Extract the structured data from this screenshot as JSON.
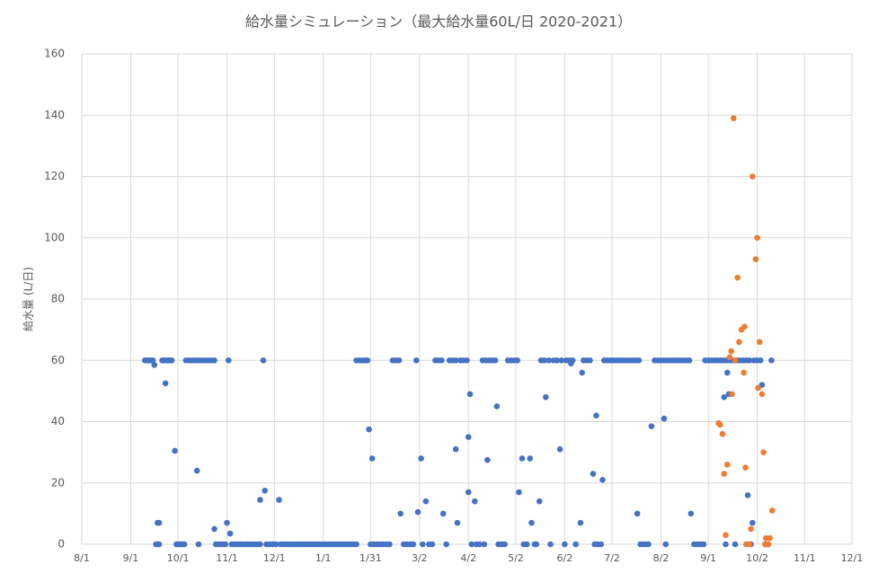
{
  "chart_data": {
    "type": "scatter",
    "title": "給水量シミュレーション（最大給水量60L/日 2020-2021）",
    "y_label": "給水量 (L/日)",
    "xlim": [
      0,
      488
    ],
    "ylim": [
      0,
      160
    ],
    "grid": true,
    "xticks": [
      {
        "value": 0,
        "label": "8/1"
      },
      {
        "value": 31,
        "label": "9/1"
      },
      {
        "value": 61,
        "label": "10/1"
      },
      {
        "value": 92,
        "label": "11/1"
      },
      {
        "value": 122,
        "label": "12/1"
      },
      {
        "value": 153,
        "label": "1/1"
      },
      {
        "value": 183,
        "label": "1/31"
      },
      {
        "value": 214,
        "label": "3/2"
      },
      {
        "value": 245,
        "label": "4/2"
      },
      {
        "value": 275,
        "label": "5/2"
      },
      {
        "value": 306,
        "label": "6/2"
      },
      {
        "value": 336,
        "label": "7/2"
      },
      {
        "value": 367,
        "label": "8/2"
      },
      {
        "value": 397,
        "label": "9/1"
      },
      {
        "value": 428,
        "label": "10/2"
      },
      {
        "value": 458,
        "label": "11/1"
      },
      {
        "value": 488,
        "label": "12/1"
      }
    ],
    "yticks": [
      0,
      20,
      40,
      60,
      80,
      100,
      120,
      140,
      160
    ],
    "series": [
      {
        "color": "#4472c4",
        "x": [
          40,
          41,
          42,
          43,
          44,
          45,
          46,
          47,
          48,
          48,
          49,
          49,
          51,
          52,
          53,
          53,
          54,
          55,
          56,
          57,
          59,
          60,
          61,
          62,
          63,
          64,
          65,
          66,
          68,
          70,
          72,
          73,
          74,
          74,
          76,
          78,
          80,
          82,
          84,
          84,
          85,
          87,
          89,
          91,
          92,
          93,
          94,
          95,
          97,
          99,
          101,
          103,
          105,
          107,
          109,
          111,
          113,
          113,
          115,
          116,
          117,
          119,
          121,
          123,
          125,
          126,
          128,
          130,
          132,
          134,
          136,
          138,
          140,
          142,
          144,
          146,
          148,
          150,
          152,
          154,
          156,
          158,
          160,
          162,
          164,
          166,
          168,
          170,
          172,
          174,
          174,
          176,
          178,
          180,
          181,
          182,
          183,
          184,
          185,
          187,
          189,
          191,
          193,
          195,
          197,
          199,
          201,
          202,
          204,
          206,
          208,
          210,
          212,
          213,
          215,
          216,
          218,
          220,
          222,
          224,
          226,
          228,
          229,
          231,
          233,
          235,
          237,
          237,
          238,
          240,
          242,
          244,
          245,
          245,
          246,
          247,
          249,
          250,
          252,
          254,
          255,
          256,
          257,
          258,
          260,
          262,
          263,
          264,
          266,
          268,
          270,
          272,
          274,
          276,
          277,
          279,
          280,
          282,
          284,
          285,
          287,
          288,
          290,
          291,
          293,
          294,
          296,
          297,
          299,
          301,
          303,
          304,
          306,
          307,
          309,
          310,
          311,
          313,
          316,
          317,
          318,
          320,
          322,
          324,
          325,
          326,
          327,
          329,
          330,
          331,
          333,
          335,
          337,
          339,
          341,
          343,
          345,
          347,
          349,
          351,
          352,
          353,
          354,
          356,
          358,
          359,
          361,
          363,
          365,
          367,
          369,
          369,
          370,
          371,
          373,
          375,
          377,
          379,
          381,
          383,
          385,
          386,
          388,
          390,
          392,
          394,
          395,
          397,
          399,
          401,
          403,
          405,
          407,
          407,
          408,
          409,
          409,
          410,
          411,
          413,
          414,
          415,
          417,
          419,
          421,
          422,
          423,
          424,
          425,
          426,
          428,
          430,
          431,
          433,
          434,
          435,
          437
        ],
        "values": [
          60,
          60,
          60,
          60,
          60,
          60,
          58.5,
          0,
          0,
          7,
          7,
          0,
          60,
          60,
          60,
          52.5,
          60,
          60,
          60,
          60,
          30.5,
          0,
          0,
          0,
          0,
          0,
          0,
          60,
          60,
          60,
          60,
          24,
          0,
          60,
          60,
          60,
          60,
          60,
          60,
          5,
          0,
          0,
          0,
          0,
          7,
          60,
          3.5,
          0,
          0,
          0,
          0,
          0,
          0,
          0,
          0,
          0,
          0,
          14.5,
          60,
          17.5,
          0,
          0,
          0,
          0,
          14.5,
          0,
          0,
          0,
          0,
          0,
          0,
          0,
          0,
          0,
          0,
          0,
          0,
          0,
          0,
          0,
          0,
          0,
          0,
          0,
          0,
          0,
          0,
          0,
          0,
          0,
          60,
          60,
          60,
          60,
          60,
          37.5,
          0,
          28,
          0,
          0,
          0,
          0,
          0,
          0,
          60,
          60,
          60,
          10,
          0,
          0,
          0,
          0,
          60,
          10.5,
          28,
          0,
          14,
          0,
          0,
          60,
          60,
          60,
          10,
          0,
          60,
          60,
          31,
          60,
          7,
          60,
          60,
          60,
          17,
          35,
          49,
          0,
          14,
          0,
          0,
          60,
          0,
          60,
          27.5,
          60,
          60,
          60,
          45,
          0,
          0,
          0,
          60,
          60,
          60,
          60,
          17,
          28,
          0,
          0,
          28,
          7,
          0,
          0,
          14,
          60,
          60,
          48,
          60,
          0,
          60,
          60,
          31,
          60,
          0,
          60,
          60,
          59,
          60,
          0,
          7,
          56,
          60,
          60,
          60,
          23,
          0,
          42,
          0,
          0,
          21,
          60,
          60,
          60,
          60,
          60,
          60,
          60,
          60,
          60,
          60,
          60,
          10,
          60,
          0,
          0,
          0,
          0,
          38.5,
          60,
          60,
          60,
          41,
          60,
          0,
          60,
          60,
          60,
          60,
          60,
          60,
          60,
          60,
          10,
          0,
          0,
          0,
          0,
          60,
          60,
          60,
          60,
          60,
          60,
          60,
          48,
          0,
          60,
          56,
          49,
          60,
          60,
          0,
          60,
          60,
          60,
          60,
          16,
          60,
          0,
          7,
          60,
          60,
          60,
          52,
          0,
          0,
          0,
          60
        ]
      },
      {
        "color": "#ed7d31",
        "x": [
          403.5,
          404.5,
          406,
          407,
          408,
          409,
          410.5,
          411.5,
          412,
          413,
          414,
          415.5,
          416.5,
          418,
          419.5,
          420,
          420.5,
          421,
          423,
          424,
          425,
          427,
          428,
          428.5,
          429.5,
          431,
          432,
          433,
          433.5,
          435,
          436,
          437.5
        ],
        "values": [
          39.5,
          39,
          36,
          23,
          3,
          26,
          61,
          63,
          49,
          139,
          60,
          87,
          66,
          70,
          56,
          71,
          25,
          0,
          0,
          5,
          120,
          93,
          100,
          51,
          66,
          49,
          30,
          0,
          2,
          0,
          2,
          11
        ]
      }
    ]
  }
}
